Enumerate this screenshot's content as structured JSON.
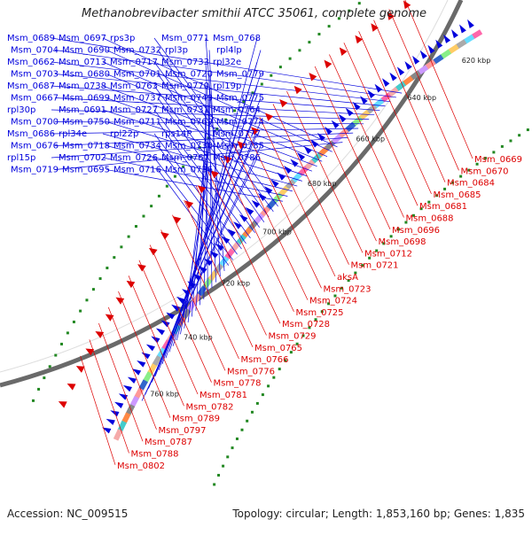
{
  "title": "Methanobrevibacter smithii ATCC 35061, complete genome",
  "footer": {
    "accession": "Accession: NC_009515",
    "topology": "Topology: circular; Length: 1,853,160 bp; Genes: 1,835"
  },
  "colors": {
    "plus": "#0000dd",
    "minus": "#dd0000",
    "backbone": "#555555",
    "tick": "#228822"
  },
  "kbp_labels": [
    "620 kbp",
    "640 kbp",
    "660 kbp",
    "680 kbp",
    "700 kbp",
    "720 kbp",
    "740 kbp",
    "760 kbp"
  ],
  "plus_labels": [
    "Msm_0689",
    "Msm_0704",
    "Msm_0662",
    "Msm_0703",
    "Msm_0687",
    "Msm_0667",
    "rpl30p",
    "Msm_0700",
    "Msm_0686",
    "Msm_0676",
    "rpl15p",
    "Msm_0719",
    "Msm_0697",
    "Msm_0690",
    "Msm_0713",
    "Msm_0680",
    "Msm_0738",
    "Msm_0699",
    "Msm_0691",
    "Msm_0750",
    "rpl34e",
    "Msm_0718",
    "Msm_0702",
    "Msm_0695",
    "rps3p",
    "Msm_0732",
    "Msm_0717",
    "Msm_0701",
    "Msm_0763",
    "Msm_0737",
    "Msm_0727",
    "Msm_0711",
    "rpl22p",
    "Msm_0734",
    "Msm_0726",
    "Msm_0716",
    "Msm_0771",
    "rpl3p",
    "Msm_0733",
    "Msm_0720",
    "Msm_0770",
    "Msm_0749",
    "Msm_0731",
    "Msm_0769",
    "rps14P",
    "Msm_0730",
    "Msm_0767",
    "Msm_0736",
    "Msm_0768",
    "rpl4lp",
    "rpl32e",
    "Msm_0779",
    "rpl19p",
    "Msm_0775",
    "Msm_0764",
    "Msm_0774",
    "Msm_0777",
    "Msm_0785",
    "Msm_0786"
  ],
  "minus_labels": [
    "Msm_0669",
    "Msm_0670",
    "Msm_0684",
    "Msm_0685",
    "Msm_0681",
    "Msm_0688",
    "Msm_0696",
    "Msm_0698",
    "Msm_0712",
    "Msm_0721",
    "aksA",
    "Msm_0723",
    "Msm_0724",
    "Msm_0725",
    "Msm_0728",
    "Msm_0729",
    "Msm_0765",
    "Msm_0766",
    "Msm_0776",
    "Msm_0778",
    "Msm_0781",
    "Msm_0782",
    "Msm_0789",
    "Msm_0797",
    "Msm_0787",
    "Msm_0788",
    "Msm_0802"
  ]
}
